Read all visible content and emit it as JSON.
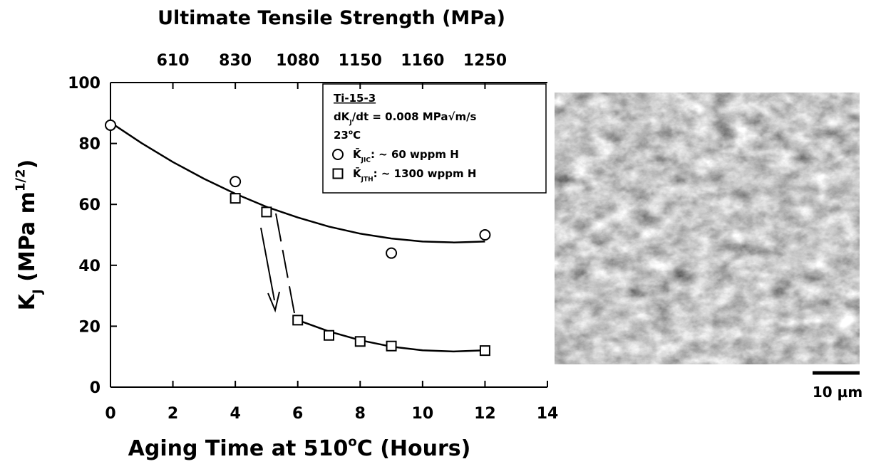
{
  "chart_data": {
    "type": "scatter",
    "title": "Ultimate Tensile Strength (MPa)",
    "xlabel": [
      {
        "text": "Aging Time at 510"
      },
      {
        "text": "o",
        "sup": true
      },
      {
        "text": "C (Hours)"
      }
    ],
    "ylabel": [
      {
        "text": "K"
      },
      {
        "text": "J",
        "sub": true
      },
      {
        "text": " (MPa m"
      },
      {
        "text": "1/2",
        "sup": true
      },
      {
        "text": ")"
      }
    ],
    "xlim": [
      0,
      14
    ],
    "xticks": [
      0,
      2,
      4,
      6,
      8,
      10,
      12,
      14
    ],
    "ylim": [
      0,
      100
    ],
    "yticks": [
      0,
      20,
      40,
      60,
      80,
      100
    ],
    "x2ticks": [
      {
        "value": 2,
        "label": "610"
      },
      {
        "value": 4,
        "label": "830"
      },
      {
        "value": 6,
        "label": "1080"
      },
      {
        "value": 8,
        "label": "1150"
      },
      {
        "value": 10,
        "label": "1160"
      },
      {
        "value": 12,
        "label": "1250"
      }
    ],
    "legend_title": "Ti-15-3",
    "legend_notes": [
      [
        {
          "text": "dK"
        },
        {
          "text": "J",
          "sub": true
        },
        {
          "text": "/dt = 0.008 MPa√m/s"
        }
      ],
      [
        {
          "text": "23"
        },
        {
          "text": "o",
          "sup": true
        },
        {
          "text": "C"
        }
      ]
    ],
    "series": [
      {
        "name": [
          {
            "text": "K̄"
          },
          {
            "text": "JIC",
            "sub": true
          },
          {
            "text": ":  ~ 60 wppm H"
          }
        ],
        "marker": "circle",
        "color": "#000000",
        "x": [
          0,
          4,
          9,
          12
        ],
        "values": [
          86,
          67.5,
          44,
          50
        ]
      },
      {
        "name": [
          {
            "text": "K̄"
          },
          {
            "text": "JTH",
            "sub": true
          },
          {
            "text": ":  ~ 1300 wppm H"
          }
        ],
        "marker": "square",
        "color": "#000000",
        "x": [
          4,
          5,
          6,
          7,
          8,
          9,
          12
        ],
        "values": [
          62,
          57.5,
          22,
          17,
          15,
          13.5,
          12
        ]
      }
    ],
    "fits": [
      {
        "x": [
          0,
          1,
          2,
          3,
          4,
          5,
          6,
          7,
          8,
          9,
          10,
          11,
          12
        ],
        "values": [
          86.9,
          80.1,
          73.9,
          68.4,
          63.5,
          59.2,
          55.7,
          52.7,
          50.4,
          48.8,
          47.8,
          47.5,
          47.8
        ]
      },
      {
        "x": [
          6,
          7,
          8,
          9,
          10,
          11,
          12
        ],
        "values": [
          22,
          18.3,
          15.4,
          13.3,
          12.1,
          11.7,
          12.1
        ]
      }
    ],
    "image_scale_label": "10 µm"
  }
}
